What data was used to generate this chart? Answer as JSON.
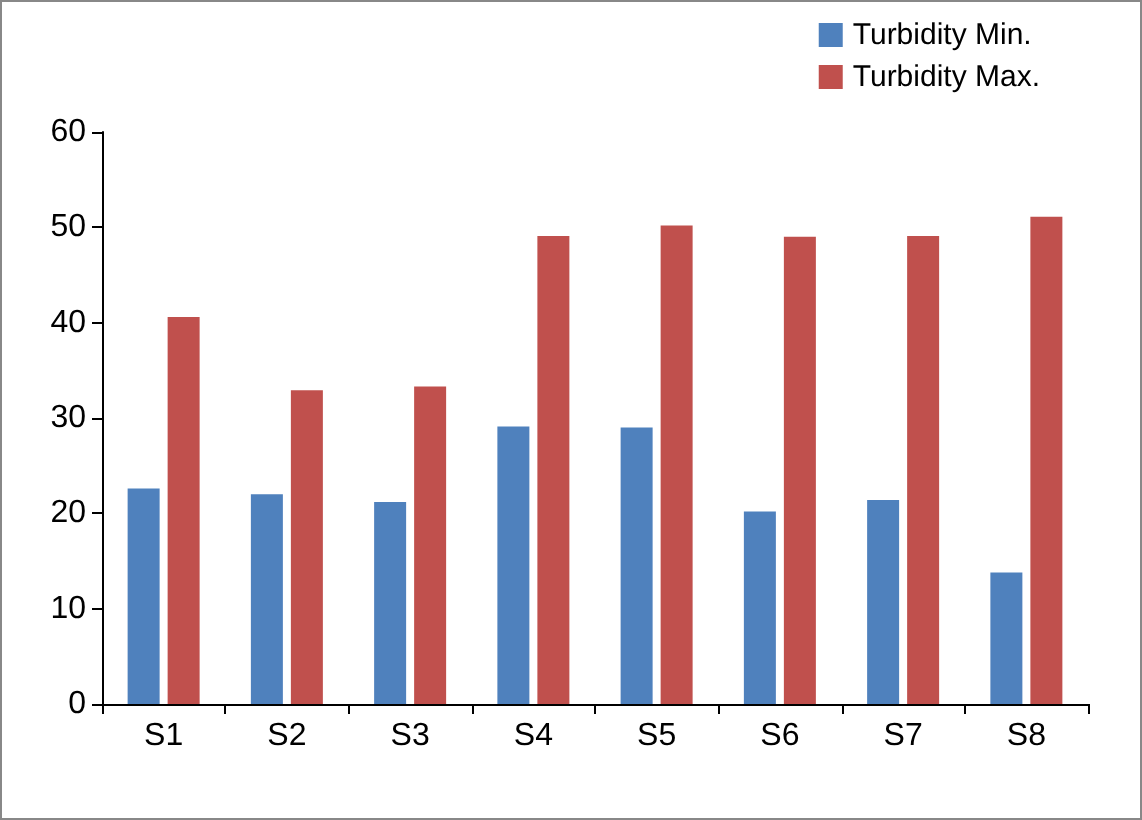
{
  "chart_data": {
    "type": "bar",
    "categories": [
      "S1",
      "S2",
      "S3",
      "S4",
      "S5",
      "S6",
      "S7",
      "S8"
    ],
    "series": [
      {
        "name": "Turbidity Min.",
        "color": "#4f81bd",
        "values": [
          22.6,
          22.0,
          21.2,
          29.1,
          29.0,
          20.2,
          21.4,
          13.8
        ]
      },
      {
        "name": "Turbidity Max.",
        "color": "#c0504d",
        "values": [
          40.6,
          32.9,
          33.3,
          49.1,
          50.2,
          49.0,
          49.1,
          51.1
        ]
      }
    ],
    "ylim": [
      0,
      60
    ],
    "yticks": [
      0,
      10,
      20,
      30,
      40,
      50,
      60
    ],
    "grid": false,
    "legend": "top right"
  }
}
